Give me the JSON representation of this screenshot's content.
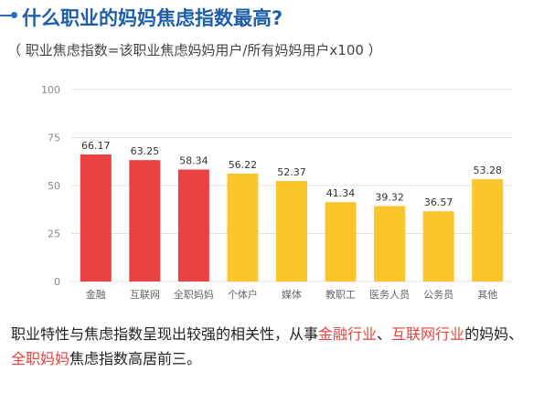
{
  "heading": {
    "title": "什么职业的妈妈焦虑指数最高?",
    "formula": "（ 职业焦虑指数=该职业焦虑妈妈用户/所有妈妈用户x100 ）"
  },
  "chart_data": {
    "type": "bar",
    "categories": [
      "金融",
      "互联网",
      "全职妈妈",
      "个体户",
      "媒体",
      "教职工",
      "医务人员",
      "公务员",
      "其他"
    ],
    "values": [
      66.17,
      63.25,
      58.34,
      56.22,
      52.37,
      41.34,
      39.32,
      36.57,
      53.28
    ],
    "value_labels": [
      "66.17",
      "63.25",
      "58.34",
      "56.22",
      "52.37",
      "41.34",
      "39.32",
      "36.57",
      "53.28"
    ],
    "bar_colors": [
      "#ea4242",
      "#ea4242",
      "#ea4242",
      "#fbc52b",
      "#fbc52b",
      "#fbc52b",
      "#fbc52b",
      "#fbc52b",
      "#fbc52b"
    ],
    "ylim": [
      0,
      100
    ],
    "yticks": [
      "0",
      "25",
      "50",
      "75",
      "100"
    ],
    "grid": true
  },
  "caption": {
    "part1": "职业特性与焦虑指数呈现出较强的相关性，从事",
    "hl1": "金融行业",
    "sep": "、",
    "hl2": "互联网行业",
    "part2": "的妈妈、",
    "hl3": "全职妈妈",
    "part3": "焦虑指数高居前三。"
  },
  "colors": {
    "title": "#1f5fa8",
    "highlight": "#e8423c",
    "grid": "#e3e3e3",
    "tick_text": "#888888"
  }
}
